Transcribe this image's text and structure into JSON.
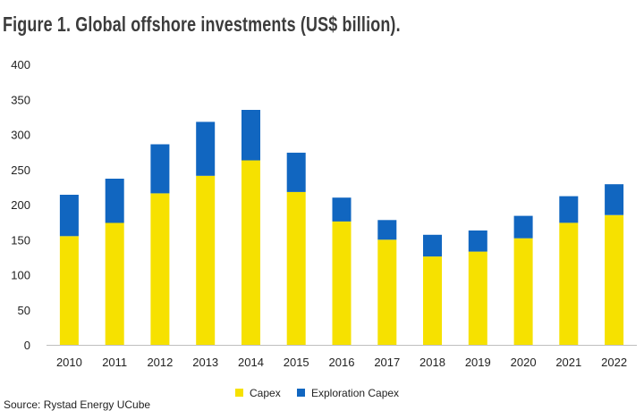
{
  "title": "Figure 1. Global offshore investments (US$ billion).",
  "source": "Source: Rystad Energy UCube",
  "colors": {
    "capex": "#f6e100",
    "exploration": "#1166c0",
    "axis": "#bfbfbf",
    "text": "#222222"
  },
  "chart_data": {
    "type": "bar",
    "stacked": true,
    "categories": [
      "2010",
      "2011",
      "2012",
      "2013",
      "2014",
      "2015",
      "2016",
      "2017",
      "2018",
      "2019",
      "2020",
      "2021",
      "2022"
    ],
    "series": [
      {
        "name": "Capex",
        "values": [
          155,
          174,
          216,
          241,
          263,
          218,
          176,
          150,
          126,
          133,
          152,
          174,
          185
        ]
      },
      {
        "name": "Exploration Capex",
        "values": [
          59,
          63,
          70,
          77,
          72,
          56,
          34,
          28,
          31,
          30,
          32,
          38,
          44
        ]
      }
    ],
    "ylim": [
      0,
      400
    ],
    "yticks": [
      0,
      50,
      100,
      150,
      200,
      250,
      300,
      350,
      400
    ],
    "grid": false,
    "legend_position": "bottom"
  }
}
